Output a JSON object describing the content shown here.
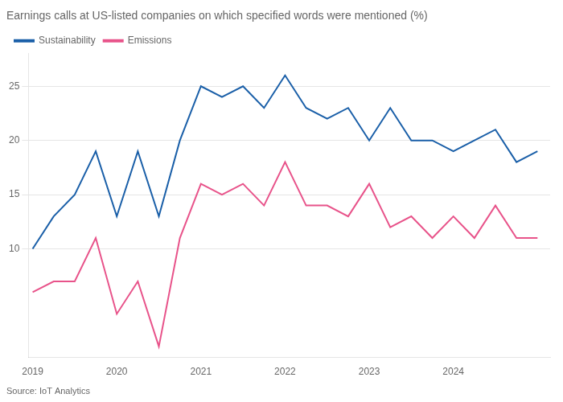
{
  "chart_data": {
    "type": "line",
    "title": "Earnings calls at US-listed companies on which specified words were mentioned (%)",
    "annotations": [
      "Source: IoT Analytics"
    ],
    "x": [
      2019,
      2019.25,
      2019.5,
      2019.75,
      2020,
      2020.25,
      2020.5,
      2020.75,
      2021,
      2021.25,
      2021.5,
      2021.75,
      2022,
      2022.25,
      2022.5,
      2022.75,
      2023,
      2023.25,
      2023.5,
      2023.75,
      2024,
      2024.25,
      2024.5,
      2024.75,
      2025
    ],
    "series": [
      {
        "name": "Sustainability",
        "color": "#1a5fa8",
        "values": [
          10,
          13,
          15,
          19,
          13,
          19,
          13,
          20,
          25,
          24,
          25,
          23,
          26,
          23,
          22,
          23,
          20,
          23,
          20,
          20,
          19,
          20,
          21,
          18,
          19
        ]
      },
      {
        "name": "Emissions",
        "color": "#e8538a",
        "values": [
          6,
          7,
          7,
          11,
          4,
          7,
          1,
          11,
          16,
          15,
          16,
          14,
          18,
          14,
          14,
          13,
          16,
          12,
          13,
          11,
          13,
          11,
          14,
          11,
          11
        ]
      }
    ],
    "xlim": [
      2018.95,
      2025.15
    ],
    "xticks": [
      2019,
      2020,
      2021,
      2022,
      2023,
      2024
    ],
    "ylim": [
      0,
      28
    ],
    "yticks": [
      10,
      15,
      20,
      25
    ],
    "grid": true,
    "legend": "upper left"
  }
}
